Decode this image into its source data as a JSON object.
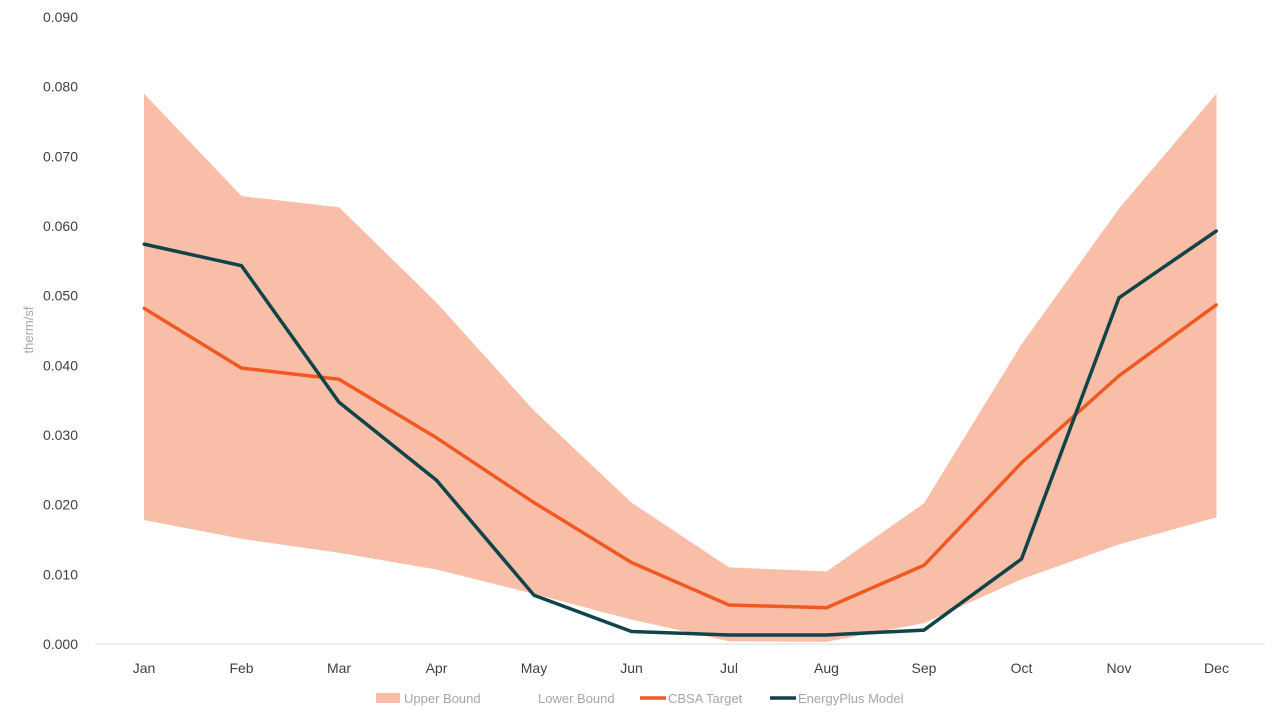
{
  "chart_data": {
    "type": "line",
    "title": "",
    "xlabel": "",
    "ylabel": "therm/sf",
    "ylim": [
      0,
      0.09
    ],
    "yticks": [
      "0.000",
      "0.010",
      "0.020",
      "0.030",
      "0.040",
      "0.050",
      "0.060",
      "0.070",
      "0.080",
      "0.090"
    ],
    "categories": [
      "Jan",
      "Feb",
      "Mar",
      "Apr",
      "May",
      "Jun",
      "Jul",
      "Aug",
      "Sep",
      "Oct",
      "Nov",
      "Dec"
    ],
    "grid": false,
    "legend_position": "bottom",
    "series": [
      {
        "name": "Upper Bound",
        "kind": "band-upper",
        "color": "#f8bea8",
        "values": [
          0.079,
          0.0643,
          0.0627,
          0.049,
          0.0335,
          0.0203,
          0.011,
          0.0104,
          0.0202,
          0.043,
          0.0625,
          0.079
        ]
      },
      {
        "name": "Lower Bound",
        "kind": "band-lower",
        "color": "#ffffff",
        "values": [
          0.0178,
          0.0151,
          0.0131,
          0.0107,
          0.0072,
          0.0035,
          0.0004,
          0.0003,
          0.003,
          0.0093,
          0.0143,
          0.0182
        ]
      },
      {
        "name": "CBSA Target",
        "kind": "line",
        "color": "#f05a22",
        "values": [
          0.0482,
          0.0396,
          0.038,
          0.0296,
          0.0203,
          0.0117,
          0.0056,
          0.0052,
          0.0113,
          0.026,
          0.0385,
          0.0487
        ]
      },
      {
        "name": "EnergyPlus Model",
        "kind": "line",
        "color": "#0f4448",
        "values": [
          0.0574,
          0.0543,
          0.0347,
          0.0235,
          0.007,
          0.0018,
          0.0013,
          0.0013,
          0.002,
          0.0122,
          0.0497,
          0.0593
        ]
      }
    ]
  }
}
